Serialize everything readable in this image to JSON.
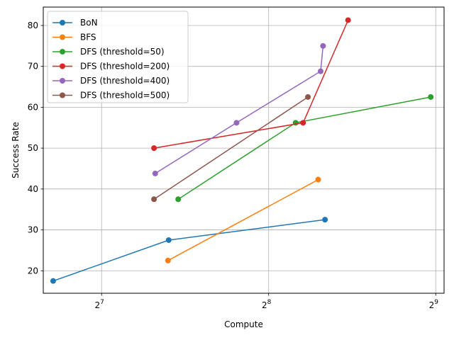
{
  "chart_data": {
    "type": "line",
    "title": "",
    "xlabel": "Compute",
    "ylabel": "Success Rate",
    "xscale": "log2",
    "xlim": [
      100.5,
      530
    ],
    "ylim": [
      14.5,
      84.5
    ],
    "grid": true,
    "legend_position": "top-left",
    "xticks": [
      {
        "value": 128,
        "label_base": "2",
        "label_exp": "7"
      },
      {
        "value": 256,
        "label_base": "2",
        "label_exp": "8"
      },
      {
        "value": 512,
        "label_base": "2",
        "label_exp": "9"
      }
    ],
    "yticks": [
      20,
      30,
      40,
      50,
      60,
      70,
      80
    ],
    "series": [
      {
        "name": "BoN",
        "color": "#1f77b4",
        "x": [
          104.7,
          169.1,
          323.4
        ],
        "y": [
          17.5,
          27.5,
          32.5
        ]
      },
      {
        "name": "BFS",
        "color": "#ff7f0e",
        "x": [
          168.6,
          314.4
        ],
        "y": [
          22.5,
          42.3
        ]
      },
      {
        "name": "DFS (threshold=50)",
        "color": "#2ca02c",
        "x": [
          175.9,
          286.3,
          501.5
        ],
        "y": [
          37.5,
          56.2,
          62.5
        ]
      },
      {
        "name": "DFS (threshold=200)",
        "color": "#d62728",
        "x": [
          159.1,
          295.3,
          355.9
        ],
        "y": [
          50.0,
          56.2,
          81.3
        ]
      },
      {
        "name": "DFS (threshold=400)",
        "color": "#9467bd",
        "x": [
          159.9,
          224.1,
          317.6,
          320.8
        ],
        "y": [
          43.8,
          56.2,
          68.8,
          75.0
        ]
      },
      {
        "name": "DFS (threshold=500)",
        "color": "#8c564b",
        "x": [
          159.1,
          301.3
        ],
        "y": [
          37.5,
          62.5
        ]
      }
    ]
  }
}
